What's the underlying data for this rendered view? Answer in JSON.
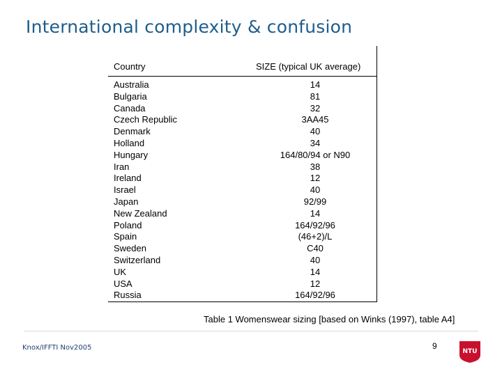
{
  "slide": {
    "title": "International complexity & confusion",
    "caption": "Table 1 Womenswear sizing [based on Winks (1997), table A4]",
    "footer": "Knox/IFFTI Nov2005",
    "page_number": "9",
    "logo_text": "NTU",
    "accent_color": "#1f5d8c",
    "logo_color": "#c8102e"
  },
  "table": {
    "headers": {
      "country": "Country",
      "size": "SIZE (typical UK average)"
    },
    "rows": [
      {
        "country": "Australia",
        "size": "14"
      },
      {
        "country": "Bulgaria",
        "size": "81"
      },
      {
        "country": "Canada",
        "size": "32"
      },
      {
        "country": "Czech Republic",
        "size": "3AA45"
      },
      {
        "country": "Denmark",
        "size": "40"
      },
      {
        "country": "Holland",
        "size": "34"
      },
      {
        "country": "Hungary",
        "size": "164/80/94 or N90"
      },
      {
        "country": "Iran",
        "size": "38"
      },
      {
        "country": "Ireland",
        "size": "12"
      },
      {
        "country": "Israel",
        "size": "40"
      },
      {
        "country": "Japan",
        "size": "92/99"
      },
      {
        "country": "New Zealand",
        "size": "14"
      },
      {
        "country": "Poland",
        "size": "164/92/96"
      },
      {
        "country": "Spain",
        "size": "(46+2)/L"
      },
      {
        "country": "Sweden",
        "size": "C40"
      },
      {
        "country": "Switzerland",
        "size": "40"
      },
      {
        "country": "UK",
        "size": "14"
      },
      {
        "country": "USA",
        "size": "12"
      },
      {
        "country": "Russia",
        "size": "164/92/96"
      }
    ]
  }
}
